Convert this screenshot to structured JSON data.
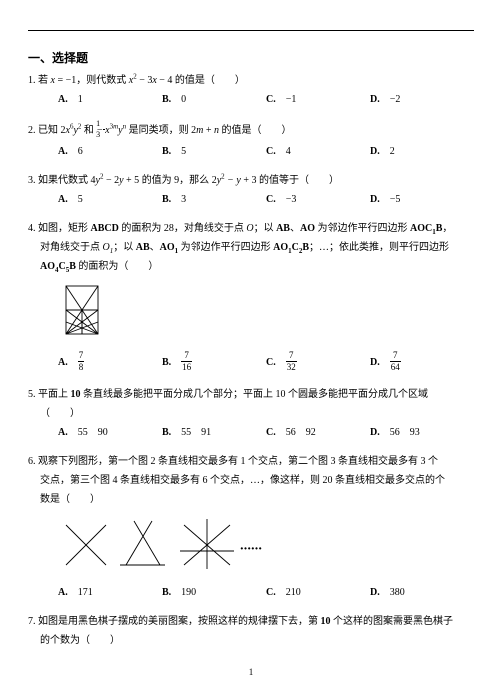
{
  "section_title": "一、选择题",
  "questions": [
    {
      "num": "1.",
      "text": "若 <span class='math'>x <span class='num'>= −1</span></span>，则代数式 <span class='math'>x<sup><span class='num'>2</span></sup> <span class='num'>− 3</span>x <span class='num'>− 4</span></span> 的值是（　　）",
      "options": {
        "A": "1",
        "B": "0",
        "C": "−1",
        "D": "−2"
      }
    },
    {
      "num": "2.",
      "text": "已知 <span class='math'><span class='num'>2</span>x<sup><span class='num'>6</span></sup>y<sup><span class='num'>2</span></sup></span> 和 <span class='math'>−<span class='frac frac-inline'><span class='fn'>1</span><span class='fd'>3</span></span>x<sup><span class='num'>3</span>m</sup>y<sup>n</sup></span> 是同类项，则 <span class='math'><span class='num'>2</span>m <span class='num'>+</span> n</span> 的值是（　　）",
      "options": {
        "A": "6",
        "B": "5",
        "C": "4",
        "D": "2"
      }
    },
    {
      "num": "3.",
      "text": "如果代数式 <span class='math'><span class='num'>4</span>y<sup><span class='num'>2</span></sup> <span class='num'>− 2</span>y <span class='num'>+ 5</span></span> 的值为 9，那么 <span class='math'><span class='num'>2</span>y<sup><span class='num'>2</span></sup> − y <span class='num'>+ 3</span></span> 的值等于（　　）",
      "options": {
        "A": "5",
        "B": "3",
        "C": "−3",
        "D": "−5"
      }
    },
    {
      "num": "4.",
      "text": "如图，矩形 <span class='math bold'>ABCD</span> 的面积为 28，对角线交于点 <span class='math'>O</span>；以 <span class='math bold'>AB</span>、<span class='math bold'>AO</span> 为邻边作平行四边形 <span class='math bold'>AOC<sub>1</sub>B</span>，",
      "text2": "对角线交于点 <span class='math'>O<sub>1</sub></span>；以 <span class='math bold'>AB</span>、<span class='math bold'>AO<sub>1</sub></span> 为邻边作平行四边形 <span class='math bold'>AO<sub>1</sub>C<sub>2</sub>B</span>；…；依此类推，则平行四边形",
      "text3": "<span class='math bold'>AO<sub>4</sub>C<sub>5</sub>B</span> 的面积为（　　）",
      "figure": "rect",
      "frac_options": {
        "A": [
          "7",
          "8"
        ],
        "B": [
          "7",
          "16"
        ],
        "C": [
          "7",
          "32"
        ],
        "D": [
          "7",
          "64"
        ]
      }
    },
    {
      "num": "5.",
      "text": "平面上 <span class='bold'>10</span> 条直线最多能把平面分成几个部分；平面上 10 个圆最多能把平面分成几个区域",
      "text2": "（　　）",
      "options": {
        "A": "55　90",
        "B": "55　91",
        "C": "56　92",
        "D": "56　93"
      }
    },
    {
      "num": "6.",
      "text": "观察下列图形，第一个图 2 条直线相交最多有 1 个交点，第二个图 3 条直线相交最多有 3 个",
      "text2": "交点，第三个图 4 条直线相交最多有 6 个交点，…，像这样，则 20 条直线相交最多交点的个",
      "text3": "数是（　　）",
      "figure": "lines",
      "options": {
        "A": "171",
        "B": "190",
        "C": "210",
        "D": "380"
      }
    },
    {
      "num": "7.",
      "text": "如图是用黑色棋子摆成的美丽图案，按照这样的规律摆下去，第 <span class='bold'>10</span> 个这样的图案需要黑色棋子",
      "text2": "的个数为（　　）"
    }
  ],
  "option_labels": {
    "A": "A.",
    "B": "B.",
    "C": "C.",
    "D": "D."
  },
  "page_number": "1"
}
